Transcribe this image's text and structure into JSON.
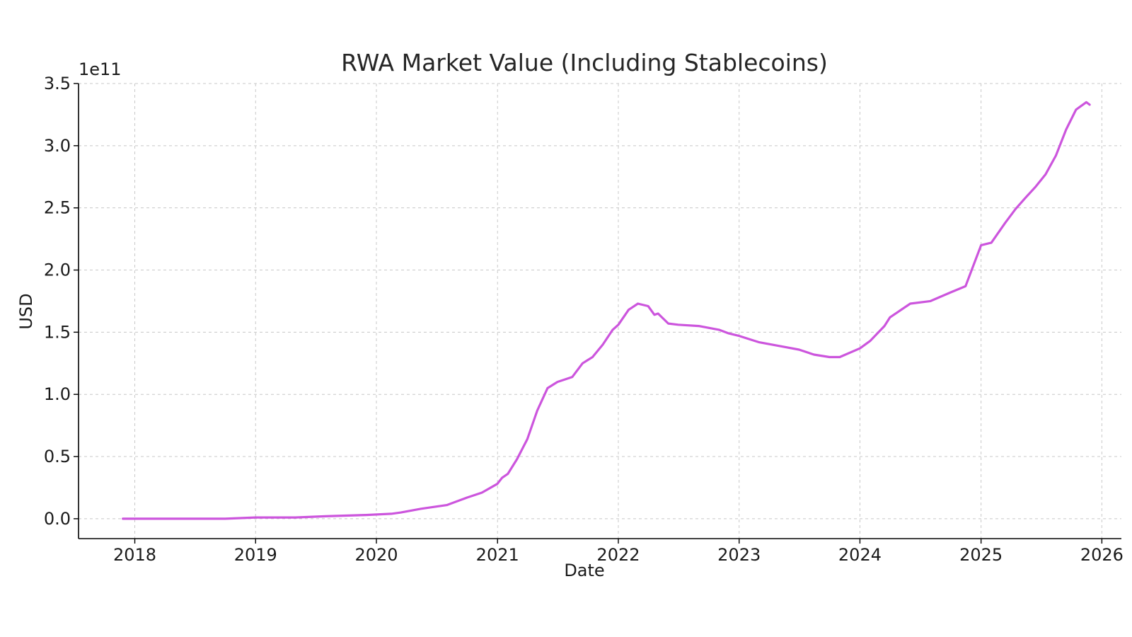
{
  "chart_data": {
    "type": "line",
    "title": "RWA Market Value (Including Stablecoins)",
    "xlabel": "Date",
    "ylabel": "USD",
    "y_offset_label": "1e11",
    "y_scale_factor": 100000000000,
    "xlim": [
      "2017-07-15",
      "2026-03-01"
    ],
    "ylim": [
      -0.16,
      3.5
    ],
    "x_ticks": [
      "2018-01-01",
      "2019-01-01",
      "2020-01-01",
      "2021-01-01",
      "2022-01-01",
      "2023-01-01",
      "2024-01-01",
      "2025-01-01",
      "2026-01-01"
    ],
    "x_tick_labels": [
      "2018",
      "2019",
      "2020",
      "2021",
      "2022",
      "2023",
      "2024",
      "2025",
      "2026"
    ],
    "y_ticks": [
      0,
      0.5,
      1.0,
      1.5,
      2.0,
      2.5,
      3.0,
      3.5
    ],
    "y_tick_labels": [
      "0.0",
      "0.5",
      "1.0",
      "1.5",
      "2.0",
      "2.5",
      "3.0",
      "3.5"
    ],
    "grid": true,
    "line_color": "#cc55dd",
    "series": [
      {
        "x": [
          "2017-11-26",
          "2018-06-01",
          "2018-10-01",
          "2019-01-01",
          "2019-05-01",
          "2019-08-01",
          "2019-12-01",
          "2020-02-15",
          "2020-03-15",
          "2020-05-15",
          "2020-08-01",
          "2020-10-01",
          "2020-11-15",
          "2020-12-31",
          "2021-01-15",
          "2021-02-01",
          "2021-03-01",
          "2021-04-01",
          "2021-05-01",
          "2021-06-01",
          "2021-07-01",
          "2021-08-15",
          "2021-09-15",
          "2021-10-15",
          "2021-11-15",
          "2021-12-15",
          "2022-01-01",
          "2022-02-01",
          "2022-03-01",
          "2022-04-01",
          "2022-04-20",
          "2022-05-01",
          "2022-06-01",
          "2022-07-01",
          "2022-09-01",
          "2022-11-01",
          "2022-12-01",
          "2023-01-01",
          "2023-03-01",
          "2023-05-01",
          "2023-07-01",
          "2023-08-15",
          "2023-10-01",
          "2023-11-01",
          "2024-01-01",
          "2024-02-01",
          "2024-03-15",
          "2024-04-01",
          "2024-06-01",
          "2024-08-01",
          "2024-10-01",
          "2024-11-15",
          "2025-01-01",
          "2025-02-01",
          "2025-03-15",
          "2025-04-15",
          "2025-05-15",
          "2025-06-15",
          "2025-07-15",
          "2025-08-15",
          "2025-09-15",
          "2025-10-15",
          "2025-11-15",
          "2025-11-25"
        ],
        "y": [
          0.0,
          0.0,
          0.0,
          0.01,
          0.01,
          0.02,
          0.03,
          0.04,
          0.05,
          0.08,
          0.11,
          0.17,
          0.21,
          0.28,
          0.33,
          0.36,
          0.48,
          0.64,
          0.87,
          1.05,
          1.1,
          1.14,
          1.25,
          1.3,
          1.4,
          1.52,
          1.56,
          1.68,
          1.73,
          1.71,
          1.64,
          1.65,
          1.57,
          1.56,
          1.55,
          1.52,
          1.49,
          1.47,
          1.42,
          1.39,
          1.36,
          1.32,
          1.3,
          1.3,
          1.37,
          1.43,
          1.55,
          1.62,
          1.73,
          1.75,
          1.82,
          1.87,
          2.2,
          2.22,
          2.38,
          2.49,
          2.58,
          2.67,
          2.77,
          2.92,
          3.13,
          3.29,
          3.35,
          3.33
        ]
      }
    ]
  }
}
